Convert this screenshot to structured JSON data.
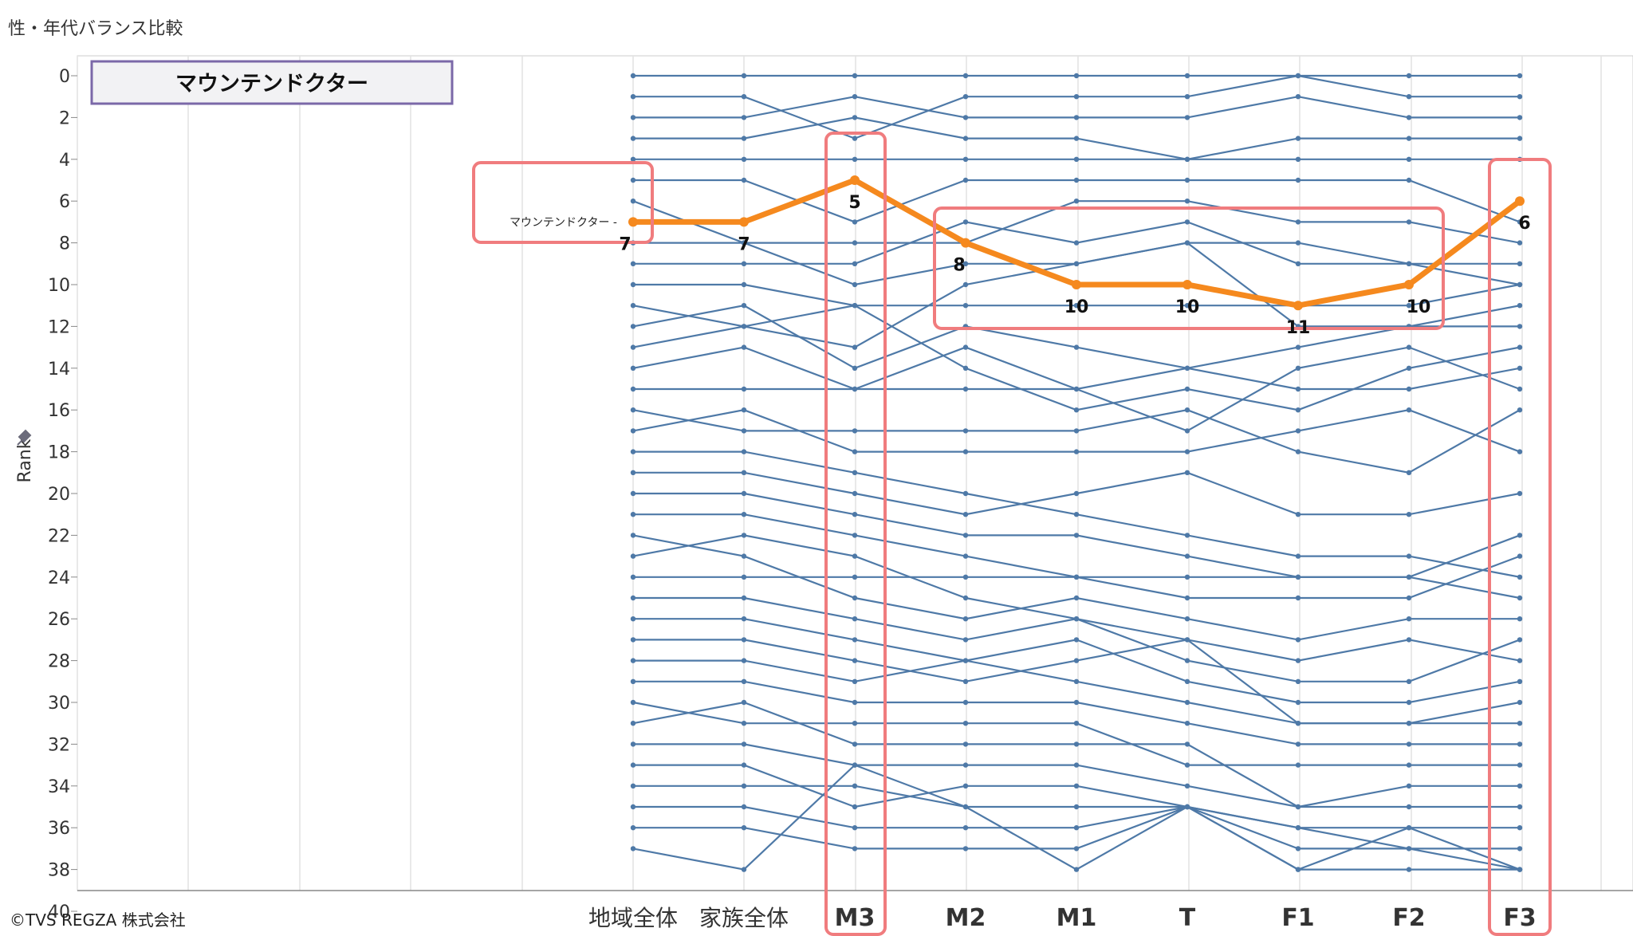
{
  "page": {
    "title": "性・年代バランス比較",
    "copyright": "©TVS REGZA 株式会社"
  },
  "chart_data": {
    "type": "line",
    "title": "マウンテンドクター",
    "ylabel": "Rank",
    "ylim": [
      0,
      40
    ],
    "y_reversed": true,
    "yticks": [
      0,
      2,
      4,
      6,
      8,
      10,
      12,
      14,
      16,
      18,
      20,
      22,
      24,
      26,
      28,
      30,
      32,
      34,
      36,
      38,
      40
    ],
    "categories": [
      "地域全体",
      "家族全体",
      "M3",
      "M2",
      "M1",
      "T",
      "F1",
      "F2",
      "F3"
    ],
    "highlight": {
      "name": "マウンテンドクター",
      "values": [
        7,
        7,
        5,
        8,
        10,
        10,
        11,
        10,
        6
      ],
      "color": "#F5891E"
    },
    "background_series": [
      [
        0,
        0,
        0,
        0,
        0,
        0,
        0,
        0,
        0
      ],
      [
        1,
        1,
        3,
        1,
        1,
        1,
        0,
        1,
        1
      ],
      [
        2,
        2,
        1,
        2,
        2,
        2,
        1,
        2,
        2
      ],
      [
        3,
        3,
        2,
        3,
        3,
        4,
        3,
        3,
        3
      ],
      [
        4,
        4,
        4,
        4,
        4,
        4,
        4,
        4,
        4
      ],
      [
        5,
        5,
        7,
        5,
        5,
        5,
        5,
        5,
        7
      ],
      [
        6,
        8,
        8,
        8,
        6,
        6,
        7,
        7,
        8
      ],
      [
        8,
        8,
        10,
        9,
        9,
        8,
        8,
        9,
        10
      ],
      [
        9,
        9,
        9,
        7,
        8,
        7,
        9,
        9,
        9
      ],
      [
        10,
        10,
        11,
        11,
        11,
        11,
        11,
        11,
        10
      ],
      [
        11,
        12,
        13,
        10,
        9,
        8,
        12,
        12,
        12
      ],
      [
        12,
        11,
        14,
        12,
        13,
        14,
        13,
        12,
        11
      ],
      [
        13,
        12,
        11,
        14,
        16,
        15,
        16,
        14,
        13
      ],
      [
        14,
        13,
        15,
        13,
        15,
        17,
        14,
        13,
        15
      ],
      [
        15,
        15,
        15,
        15,
        15,
        14,
        15,
        15,
        14
      ],
      [
        16,
        17,
        17,
        17,
        17,
        16,
        18,
        19,
        16
      ],
      [
        17,
        16,
        18,
        18,
        18,
        18,
        17,
        16,
        18
      ],
      [
        18,
        18,
        19,
        20,
        21,
        22,
        23,
        23,
        24
      ],
      [
        19,
        19,
        20,
        21,
        20,
        19,
        21,
        21,
        20
      ],
      [
        20,
        20,
        21,
        22,
        22,
        23,
        24,
        24,
        25
      ],
      [
        21,
        21,
        22,
        23,
        24,
        25,
        25,
        25,
        23
      ],
      [
        22,
        23,
        25,
        26,
        25,
        26,
        27,
        26,
        26
      ],
      [
        23,
        22,
        23,
        25,
        26,
        27,
        28,
        27,
        28
      ],
      [
        24,
        24,
        24,
        24,
        24,
        24,
        24,
        24,
        22
      ],
      [
        25,
        25,
        26,
        27,
        26,
        28,
        29,
        29,
        27
      ],
      [
        26,
        26,
        27,
        28,
        27,
        29,
        30,
        30,
        29
      ],
      [
        27,
        27,
        28,
        29,
        28,
        27,
        31,
        31,
        31
      ],
      [
        28,
        28,
        29,
        28,
        29,
        30,
        31,
        31,
        30
      ],
      [
        29,
        29,
        30,
        30,
        30,
        31,
        32,
        32,
        32
      ],
      [
        30,
        31,
        31,
        31,
        31,
        33,
        33,
        33,
        33
      ],
      [
        31,
        30,
        32,
        32,
        32,
        32,
        35,
        34,
        34
      ],
      [
        32,
        32,
        33,
        33,
        33,
        34,
        35,
        35,
        35
      ],
      [
        33,
        33,
        35,
        34,
        34,
        35,
        36,
        36,
        36
      ],
      [
        34,
        34,
        34,
        35,
        35,
        35,
        37,
        37,
        37
      ],
      [
        35,
        35,
        36,
        36,
        36,
        35,
        36,
        37,
        38
      ],
      [
        36,
        36,
        37,
        37,
        37,
        35,
        38,
        38,
        38
      ],
      [
        37,
        38,
        33,
        35,
        38,
        35,
        38,
        36,
        38
      ]
    ],
    "grid": true,
    "legend": "none"
  },
  "colors": {
    "line": "#4E79A7",
    "highlight": "#F5891E",
    "focus_box": "#F07C7E",
    "title_box_border": "#7B68A8",
    "title_box_fill": "#F2F2F4",
    "grid": "#E2E2E2"
  }
}
